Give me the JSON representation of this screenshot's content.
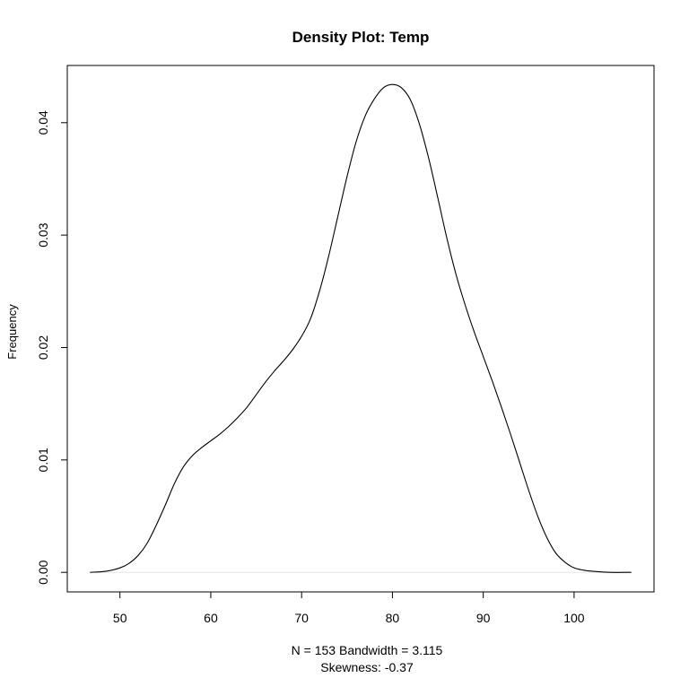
{
  "chart_data": {
    "type": "line",
    "title": "Density Plot: Temp",
    "ylabel": "Frequency",
    "xlabel_lines": [
      "N = 153   Bandwidth = 3.115",
      "Skewness: -0.37"
    ],
    "xlim": [
      44.2,
      108.8
    ],
    "ylim": [
      -0.00174,
      0.04509
    ],
    "x_ticks": [
      50,
      60,
      70,
      80,
      90,
      100
    ],
    "x_tick_labels": [
      "50",
      "60",
      "70",
      "80",
      "90",
      "100"
    ],
    "y_ticks": [
      0,
      0.01,
      0.02,
      0.03,
      0.04
    ],
    "y_tick_labels": [
      "0.00",
      "0.01",
      "0.02",
      "0.03",
      "0.04"
    ],
    "series": [
      {
        "x": [
          46.7,
          48.5,
          50,
          51,
          52,
          53,
          54,
          55,
          56,
          57,
          58,
          59,
          60,
          61,
          62,
          63,
          64,
          65,
          66,
          67,
          68,
          69,
          70,
          71,
          72,
          73,
          74,
          75,
          76,
          77,
          78,
          79,
          80,
          81,
          82,
          83,
          84,
          85,
          86,
          87,
          88,
          89,
          90,
          91,
          92,
          93,
          94,
          95,
          96,
          97,
          98,
          99,
          100,
          101,
          102,
          104,
          106.3
        ],
        "y": [
          0.0,
          0.0001,
          0.0004,
          0.0008,
          0.0015,
          0.0026,
          0.0042,
          0.006,
          0.0079,
          0.0094,
          0.0104,
          0.0111,
          0.0117,
          0.0123,
          0.013,
          0.0138,
          0.0147,
          0.0158,
          0.0169,
          0.0179,
          0.0188,
          0.0198,
          0.021,
          0.0226,
          0.0251,
          0.0282,
          0.0317,
          0.0352,
          0.0383,
          0.0406,
          0.0421,
          0.0431,
          0.0434,
          0.0431,
          0.042,
          0.0398,
          0.0368,
          0.0333,
          0.0297,
          0.0265,
          0.0238,
          0.0214,
          0.0192,
          0.017,
          0.0147,
          0.0123,
          0.0098,
          0.0073,
          0.005,
          0.0031,
          0.0017,
          0.0009,
          0.0004,
          0.0002,
          0.0001,
          0.0,
          0.0
        ],
        "color": "#000000"
      }
    ],
    "zero_line_color": "#e6e6e6",
    "grid": false,
    "legend": false
  }
}
